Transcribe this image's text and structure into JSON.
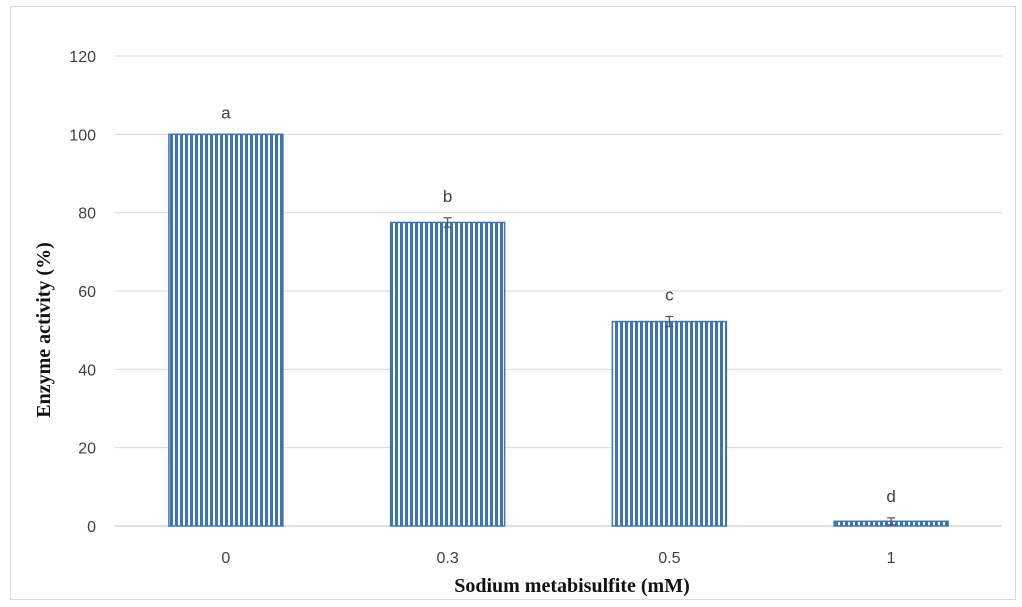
{
  "chart_data": {
    "type": "bar",
    "title": "",
    "xlabel": "Sodium metabisulfite (mM)",
    "ylabel": "Enzyme activity (%)",
    "categories": [
      "0",
      "0.3",
      "0.5",
      "1"
    ],
    "values": [
      100,
      77.5,
      52.2,
      1.2
    ],
    "errors": [
      0,
      1.2,
      1.3,
      0.9
    ],
    "significance_letters": [
      "a",
      "b",
      "c",
      "d"
    ],
    "ylim": [
      0,
      120
    ],
    "yticks": [
      "0",
      "20",
      "40",
      "60",
      "80",
      "100",
      "120"
    ],
    "grid": true,
    "legend": "none",
    "bar_pattern": "vertical-stripes",
    "colors": {
      "bar": "#3d74b5",
      "grid": "#d9d9d9",
      "axis": "#bfbfbf",
      "text": "#404040"
    }
  }
}
